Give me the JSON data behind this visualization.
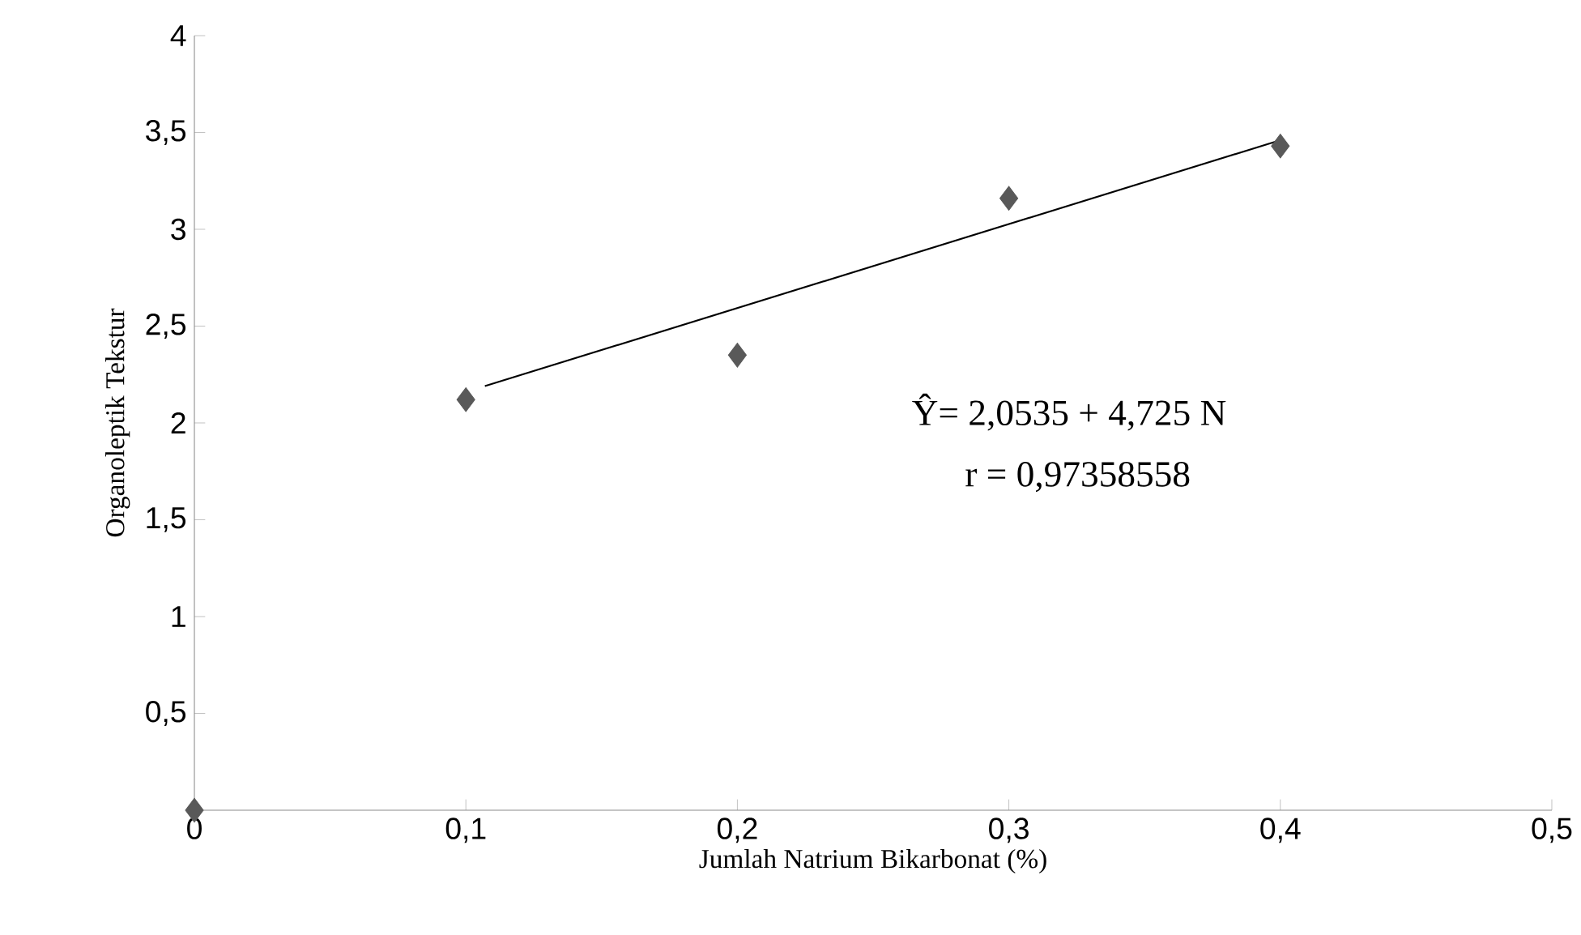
{
  "chart_data": {
    "type": "scatter",
    "xlabel": "Jumlah Natrium Bikarbonat (%)",
    "ylabel": "Organoleptik Tekstur",
    "series": [
      {
        "x": [
          0,
          0.1,
          0.2,
          0.3,
          0.4
        ],
        "values": [
          0,
          2.12,
          2.35,
          3.16,
          3.43
        ],
        "color": "#595959",
        "marker": "diamond"
      },
      {
        "type": "line",
        "x": [
          0.107,
          0.4
        ],
        "values": [
          2.19,
          3.46
        ],
        "color": "#000000",
        "marker": "none"
      }
    ],
    "xlim": [
      0,
      0.5
    ],
    "ylim": [
      0,
      4
    ],
    "xticks": [
      0,
      {
        "value": 0.1,
        "label": "0,1"
      },
      {
        "value": 0.2,
        "label": "0,2"
      },
      {
        "value": 0.3,
        "label": "0,3"
      },
      {
        "value": 0.4,
        "label": "0,4"
      },
      {
        "value": 0.5,
        "label": "0,5"
      }
    ],
    "yticks": [
      {
        "value": 0.5,
        "label": "0,5"
      },
      1,
      {
        "value": 1.5,
        "label": "1,5"
      },
      2,
      {
        "value": 2.5,
        "label": "2,5"
      },
      3,
      {
        "value": 3.5,
        "label": "3,5"
      },
      4
    ],
    "grid": false,
    "legend": false,
    "annotations": [
      "Ŷ= 2,0535 + 4,725 N",
      "r = 0,97358558"
    ]
  }
}
